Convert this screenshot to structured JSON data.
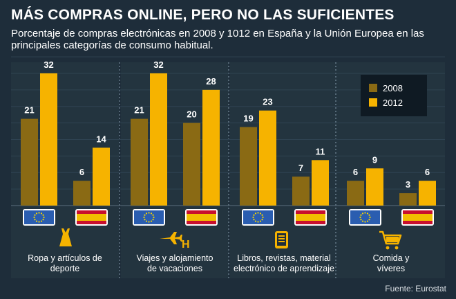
{
  "title": "MÁS COMPRAS ONLINE, PERO NO LAS SUFICIENTES",
  "subtitle": "Porcentaje de compras electrónicas en 2008 y 1012 en España y la Unión Europea en las principales categorías de consumo habitual.",
  "source": "Fuente: Eurostat",
  "colors": {
    "background": "#1e2d3a",
    "bar_2008": "#8a6a14",
    "bar_2012": "#f6b300",
    "icon": "#f6b300",
    "eu_blue": "#2a5db0",
    "spain_red": "#c8102e",
    "spain_yellow": "#f1bf00"
  },
  "icons": [
    "dress-icon",
    "plane-hotel-icon",
    "book-reader-icon",
    "shopping-cart-icon"
  ],
  "chart_data": {
    "type": "bar",
    "legend_position": "top-right",
    "ylim": [
      0,
      36
    ],
    "grid": true,
    "groups": [
      "UE",
      "España"
    ],
    "categories": [
      "Ropa y artículos de deporte",
      "Viajes y alojamiento de vacaciones",
      "Libros, revistas, material electrónico de aprendizaje",
      "Comida y víveres"
    ],
    "category_labels": [
      [
        "Ropa y artículos de",
        "deporte"
      ],
      [
        "Viajes y alojamiento",
        "de vacaciones"
      ],
      [
        "Libros, revistas, material",
        "electrónico de aprendizaje"
      ],
      [
        "Comida y",
        "víveres"
      ]
    ],
    "series": [
      {
        "name": "2008",
        "values": [
          [
            21,
            6
          ],
          [
            21,
            20
          ],
          [
            19,
            7
          ],
          [
            6,
            3
          ]
        ]
      },
      {
        "name": "2012",
        "values": [
          [
            32,
            14
          ],
          [
            32,
            28
          ],
          [
            23,
            11
          ],
          [
            9,
            6
          ]
        ]
      }
    ]
  }
}
